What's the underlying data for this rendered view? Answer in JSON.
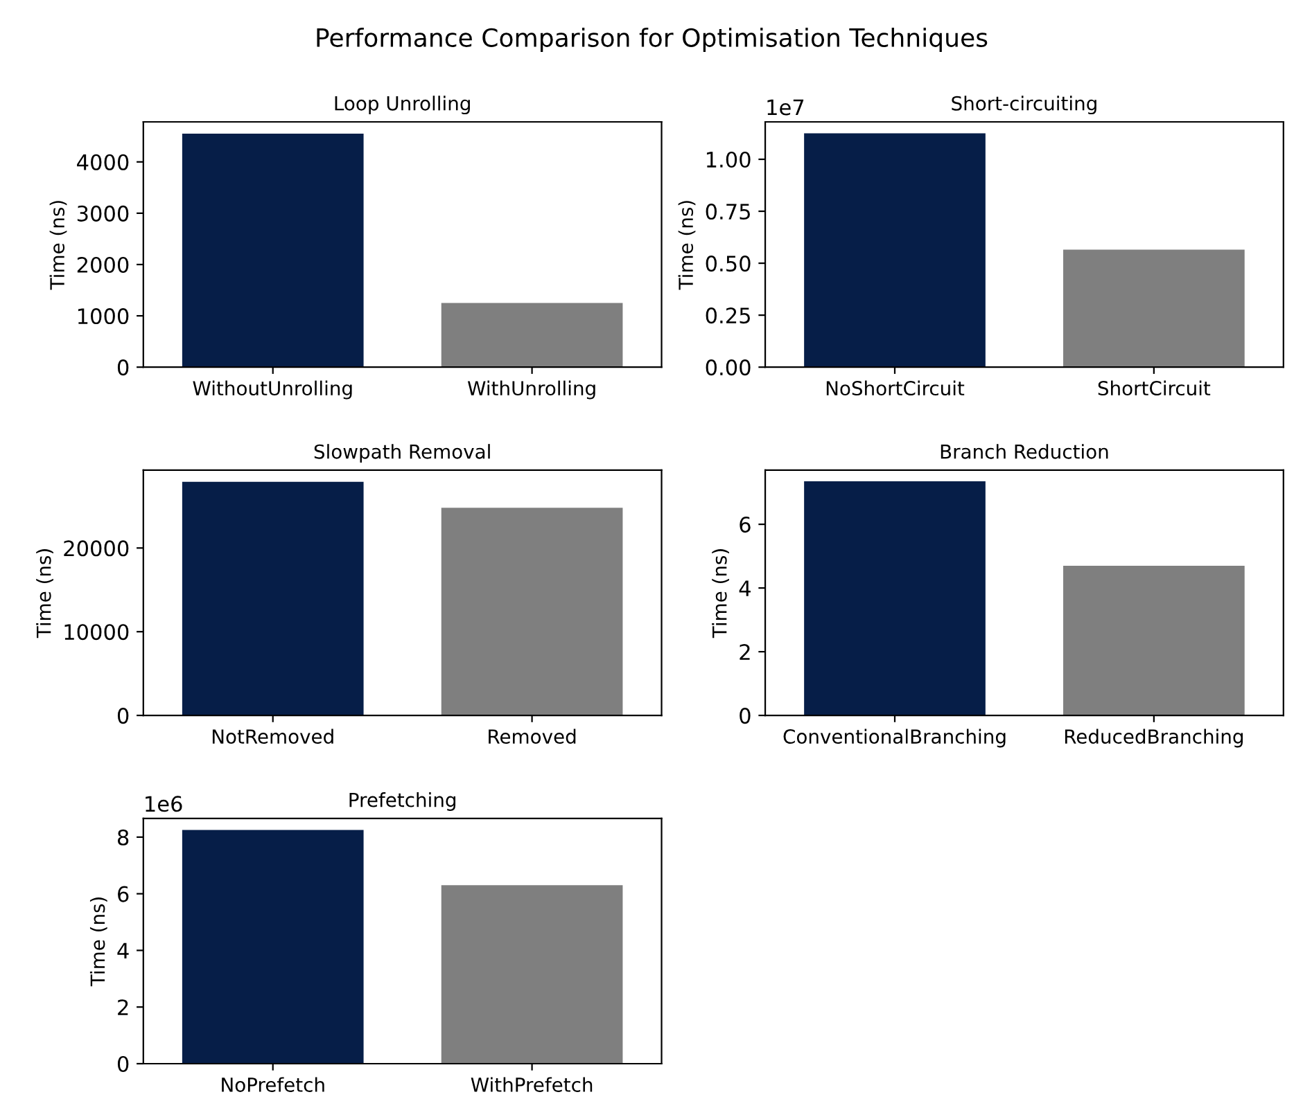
{
  "chart_data": [
    {
      "type": "bar",
      "title": "Loop Unrolling",
      "ylabel": "Time (ns)",
      "annotations": [
        "Performance Comparison for Optimisation Techniques"
      ],
      "categories": [
        "WithoutUnrolling",
        "WithUnrolling"
      ],
      "values": [
        4550,
        1250
      ],
      "colors": [
        "#061e48",
        "#7f7f7f"
      ],
      "ylim": [
        0,
        4780
      ],
      "yticks": [
        0,
        1000,
        2000,
        3000,
        4000
      ],
      "grid": false,
      "legend": false
    },
    {
      "type": "bar",
      "title": "Short-circuiting",
      "ylabel": "Time (ns)",
      "annotations": [
        "1e7"
      ],
      "categories": [
        "NoShortCircuit",
        "ShortCircuit"
      ],
      "values": [
        1.125,
        0.565
      ],
      "colors": [
        "#061e48",
        "#7f7f7f"
      ],
      "ylim": [
        0,
        1.18
      ],
      "yticks": [
        {
          "value": 0,
          "label": "0.00"
        },
        0.25,
        {
          "value": 0.5,
          "label": "0.50"
        },
        0.75,
        {
          "value": 1,
          "label": "1.00"
        }
      ],
      "grid": false,
      "legend": false
    },
    {
      "type": "bar",
      "title": "Slowpath Removal",
      "ylabel": "Time (ns)",
      "categories": [
        "NotRemoved",
        "Removed"
      ],
      "values": [
        27900,
        24800
      ],
      "colors": [
        "#061e48",
        "#7f7f7f"
      ],
      "ylim": [
        0,
        29300
      ],
      "yticks": [
        0,
        10000,
        20000
      ],
      "grid": false,
      "legend": false
    },
    {
      "type": "bar",
      "title": "Branch Reduction",
      "ylabel": "Time (ns)",
      "categories": [
        "ConventionalBranching",
        "ReducedBranching"
      ],
      "values": [
        7.35,
        4.7
      ],
      "colors": [
        "#061e48",
        "#7f7f7f"
      ],
      "ylim": [
        0,
        7.7
      ],
      "yticks": [
        0,
        2,
        4,
        6
      ],
      "grid": false,
      "legend": false
    },
    {
      "type": "bar",
      "title": "Prefetching",
      "ylabel": "Time (ns)",
      "annotations": [
        "1e6"
      ],
      "categories": [
        "NoPrefetch",
        "WithPrefetch"
      ],
      "values": [
        8.25,
        6.3
      ],
      "colors": [
        "#061e48",
        "#7f7f7f"
      ],
      "ylim": [
        0,
        8.66
      ],
      "yticks": [
        0,
        2,
        4,
        6,
        8
      ],
      "grid": false,
      "legend": false
    }
  ]
}
